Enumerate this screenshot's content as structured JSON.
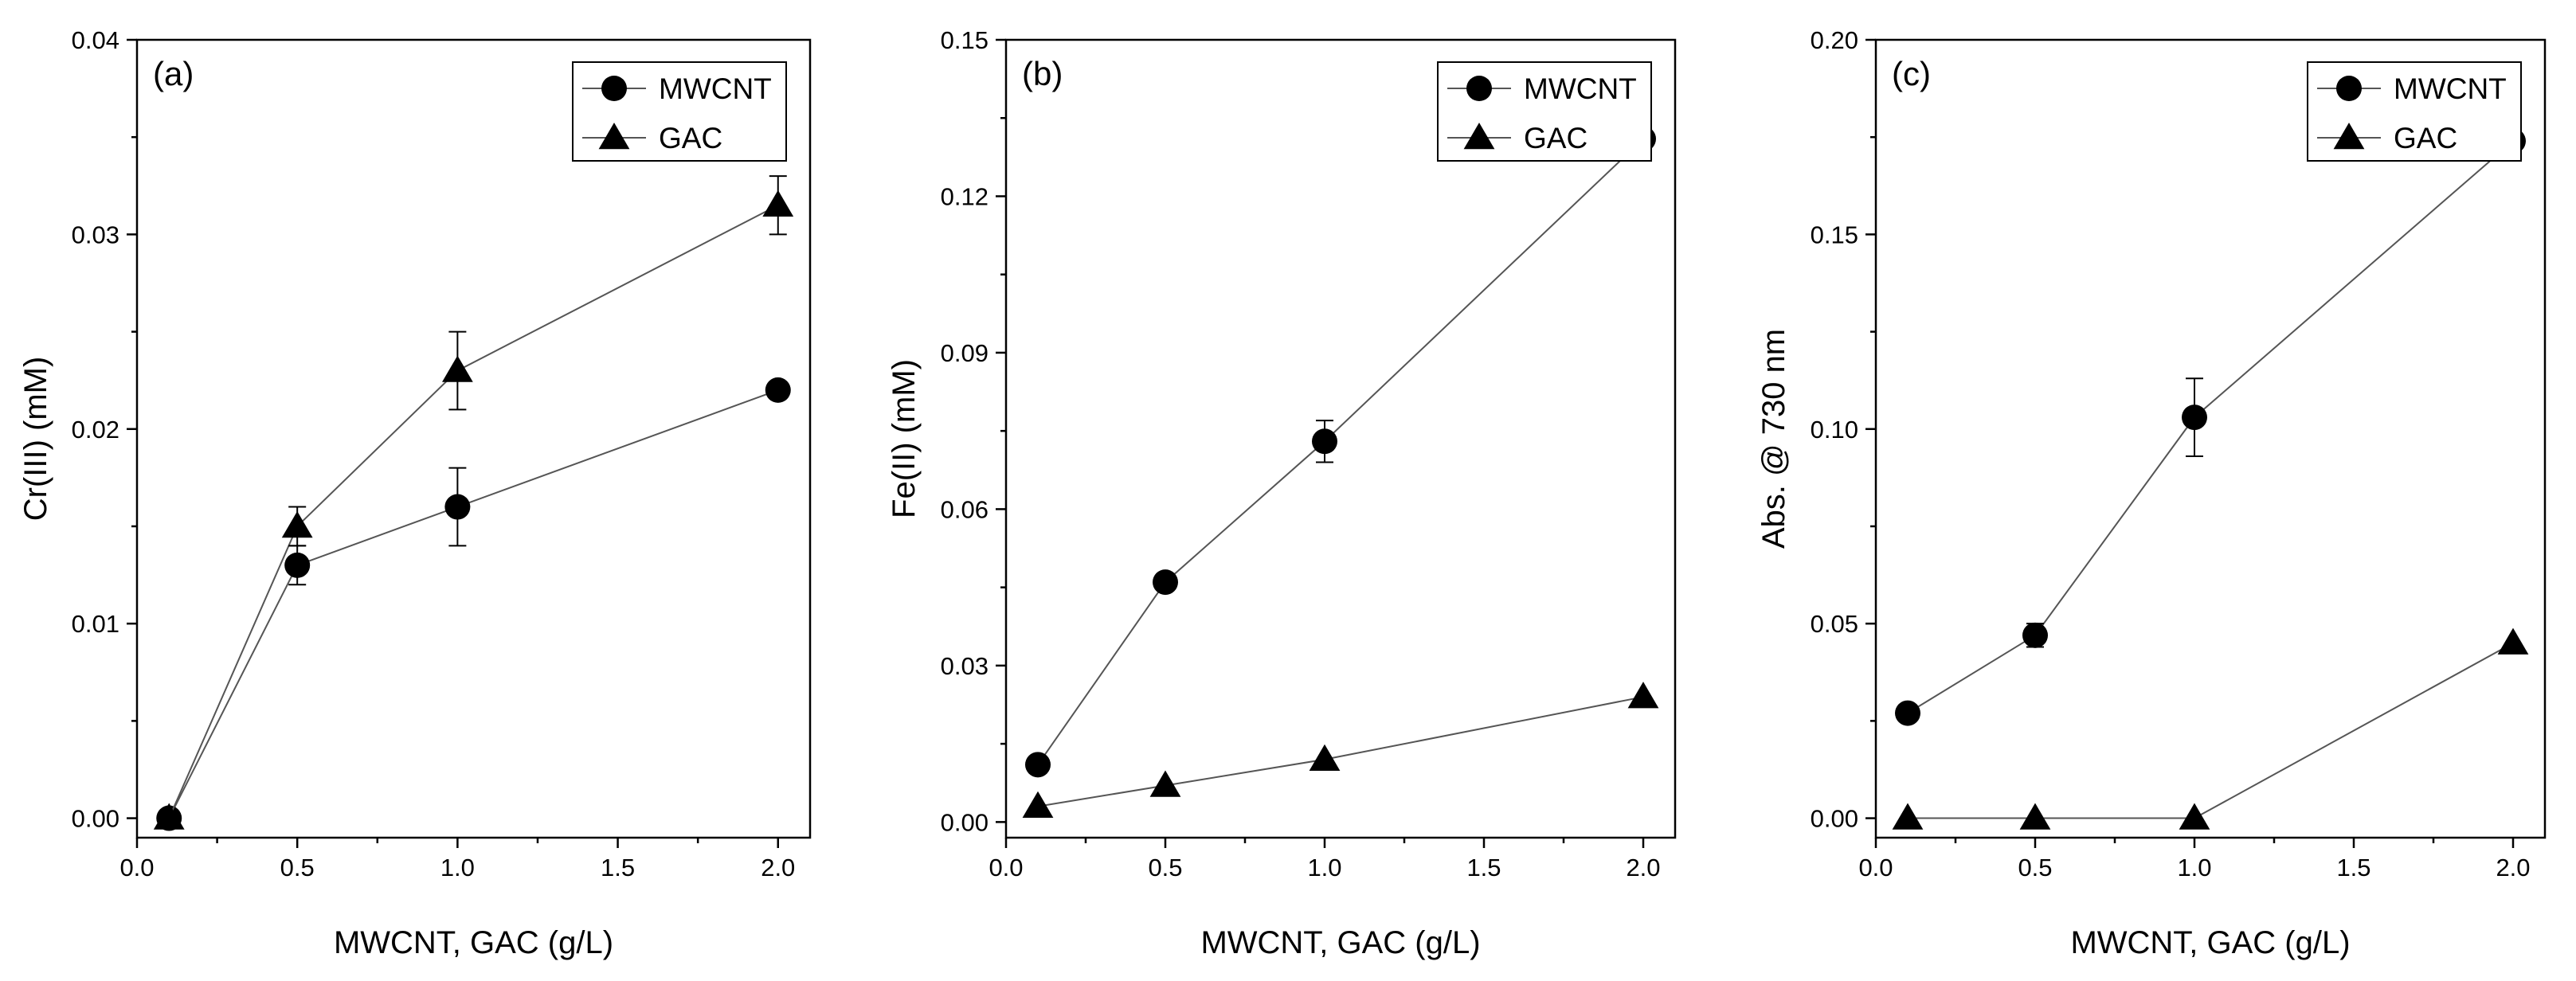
{
  "figure": {
    "xlabel_shared": "MWCNT, GAC (g/L)"
  },
  "chart_data": [
    {
      "type": "scatter",
      "panel_label": "(a)",
      "xlabel": "MWCNT, GAC (g/L)",
      "ylabel": "Cr(III) (mM)",
      "xlim": [
        0.0,
        2.1
      ],
      "ylim": [
        -0.001,
        0.04
      ],
      "xticks": [
        0.0,
        0.5,
        1.0,
        1.5,
        2.0
      ],
      "xtick_labels": [
        "0.0",
        "0.5",
        "1.0",
        "1.5",
        "2.0"
      ],
      "yticks": [
        0.0,
        0.01,
        0.02,
        0.03,
        0.04
      ],
      "ytick_labels": [
        "0.00",
        "0.01",
        "0.02",
        "0.03",
        "0.04"
      ],
      "legend_position": "top-right",
      "series": [
        {
          "name": "MWCNT",
          "marker": "circle",
          "x": [
            0.1,
            0.5,
            1.0,
            2.0
          ],
          "y": [
            0.0,
            0.013,
            0.016,
            0.022
          ],
          "err": [
            0,
            0.001,
            0.002,
            0
          ]
        },
        {
          "name": "GAC",
          "marker": "triangle",
          "x": [
            0.1,
            0.5,
            1.0,
            2.0
          ],
          "y": [
            0.0,
            0.015,
            0.023,
            0.0315
          ],
          "err": [
            0,
            0.001,
            0.002,
            0.0015
          ]
        }
      ]
    },
    {
      "type": "scatter",
      "panel_label": "(b)",
      "xlabel": "MWCNT, GAC (g/L)",
      "ylabel": "Fe(II) (mM)",
      "xlim": [
        0.0,
        2.1
      ],
      "ylim": [
        -0.003,
        0.15
      ],
      "xticks": [
        0.0,
        0.5,
        1.0,
        1.5,
        2.0
      ],
      "xtick_labels": [
        "0.0",
        "0.5",
        "1.0",
        "1.5",
        "2.0"
      ],
      "yticks": [
        0.0,
        0.03,
        0.06,
        0.09,
        0.12,
        0.15
      ],
      "ytick_labels": [
        "0.00",
        "0.03",
        "0.06",
        "0.09",
        "0.12",
        "0.15"
      ],
      "legend_position": "top-right",
      "series": [
        {
          "name": "MWCNT",
          "marker": "circle",
          "x": [
            0.1,
            0.5,
            1.0,
            2.0
          ],
          "y": [
            0.011,
            0.046,
            0.073,
            0.131
          ],
          "err": [
            0.001,
            0.001,
            0.004,
            0.002
          ]
        },
        {
          "name": "GAC",
          "marker": "triangle",
          "x": [
            0.1,
            0.5,
            1.0,
            2.0
          ],
          "y": [
            0.003,
            0.007,
            0.012,
            0.024
          ],
          "err": [
            0,
            0,
            0,
            0
          ]
        }
      ]
    },
    {
      "type": "scatter",
      "panel_label": "(c)",
      "xlabel": "MWCNT, GAC (g/L)",
      "ylabel": "Abs. @ 730 nm",
      "xlim": [
        0.0,
        2.1
      ],
      "ylim": [
        -0.005,
        0.2
      ],
      "xticks": [
        0.0,
        0.5,
        1.0,
        1.5,
        2.0
      ],
      "xtick_labels": [
        "0.0",
        "0.5",
        "1.0",
        "1.5",
        "2.0"
      ],
      "yticks": [
        0.0,
        0.05,
        0.1,
        0.15,
        0.2
      ],
      "ytick_labels": [
        "0.00",
        "0.05",
        "0.10",
        "0.15",
        "0.20"
      ],
      "legend_position": "top-right",
      "series": [
        {
          "name": "MWCNT",
          "marker": "circle",
          "x": [
            0.1,
            0.5,
            1.0,
            2.0
          ],
          "y": [
            0.027,
            0.047,
            0.103,
            0.174
          ],
          "err": [
            0.002,
            0.003,
            0.01,
            0
          ]
        },
        {
          "name": "GAC",
          "marker": "triangle",
          "x": [
            0.1,
            0.5,
            1.0,
            2.0
          ],
          "y": [
            0.0,
            0.0,
            0.0,
            0.045
          ],
          "err": [
            0,
            0,
            0,
            0
          ]
        }
      ]
    }
  ]
}
